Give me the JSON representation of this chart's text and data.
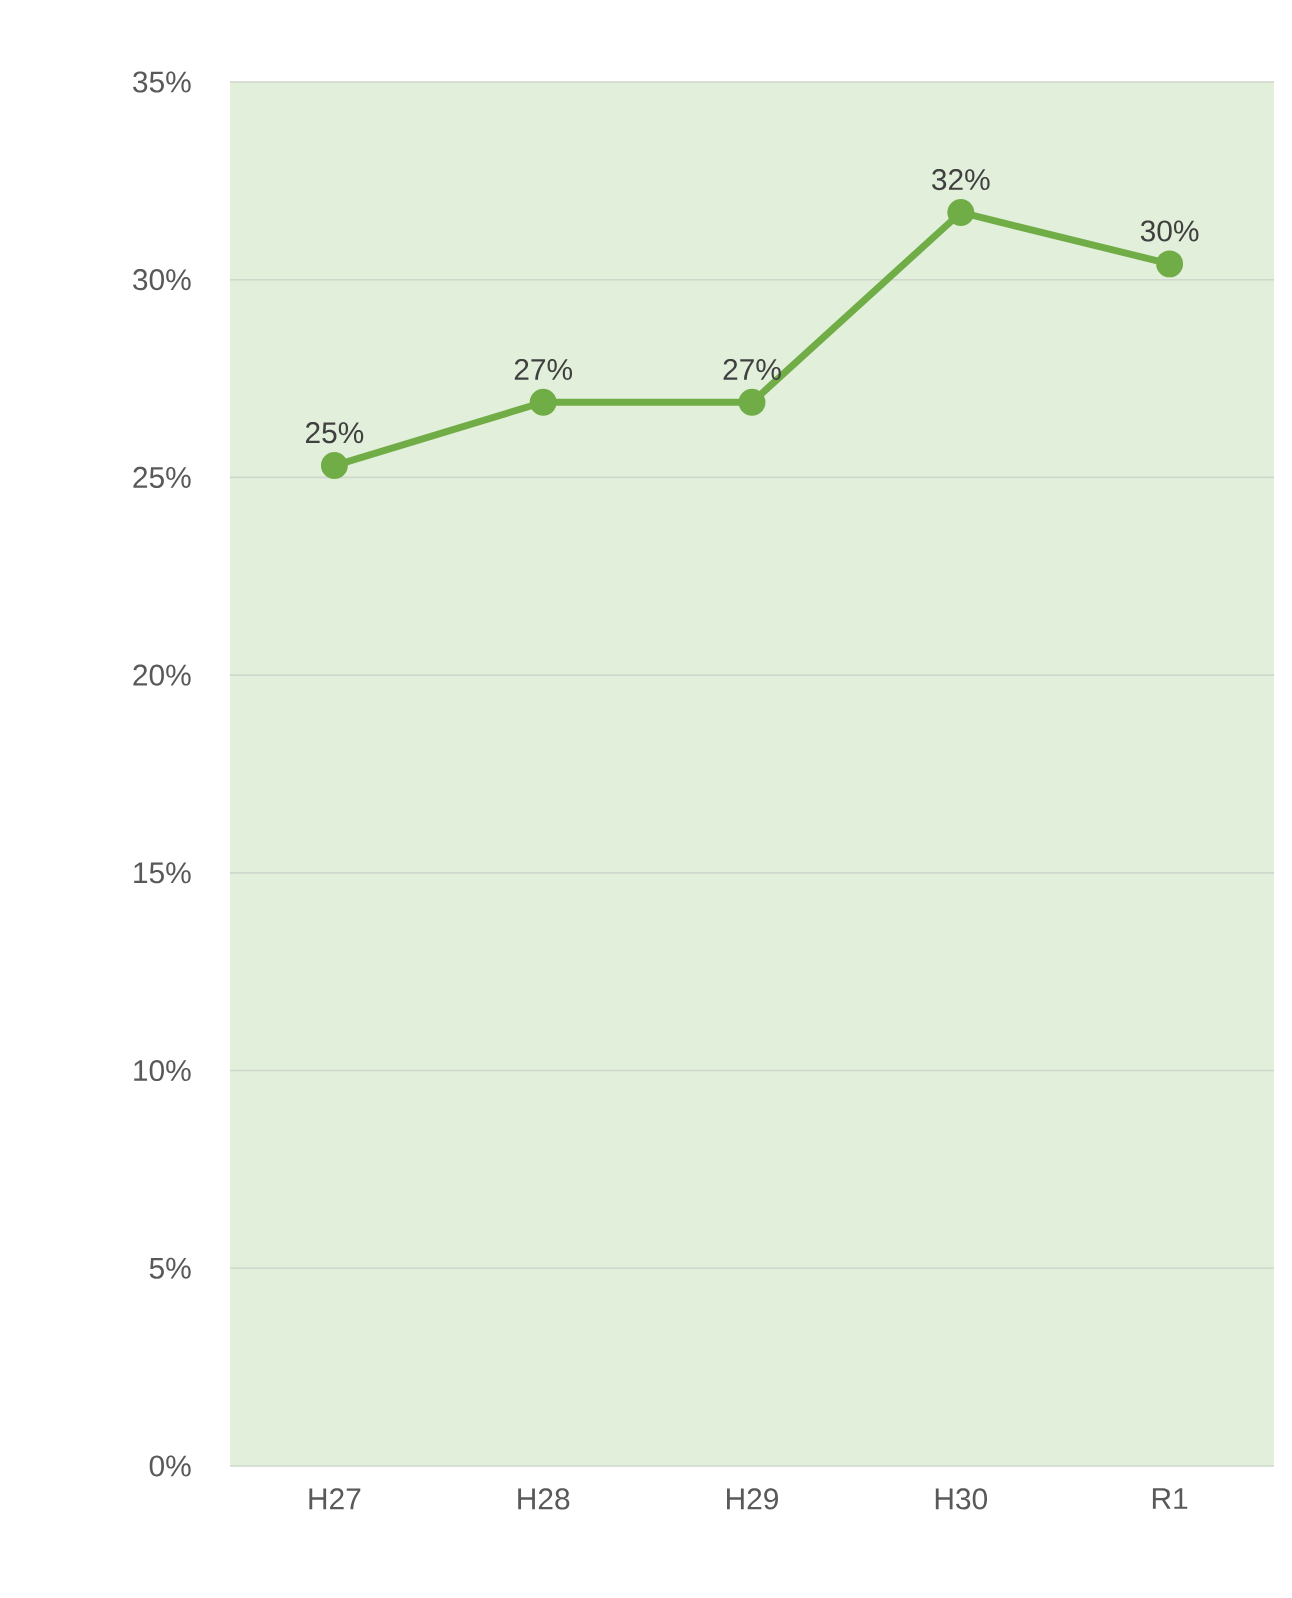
{
  "chart_data": {
    "type": "line",
    "categories": [
      "H27",
      "H28",
      "H29",
      "H30",
      "R1"
    ],
    "series": [
      {
        "color": "#70ad47",
        "values": [
          25.3,
          26.9,
          26.9,
          31.7,
          30.4
        ]
      }
    ],
    "value_labels": [
      "25%",
      "27%",
      "27%",
      "32%",
      "30%"
    ],
    "ylim": [
      0,
      35
    ],
    "yticks": [
      {
        "value": 0,
        "label": "0%"
      },
      {
        "value": 5,
        "label": "5%"
      },
      {
        "value": 10,
        "label": "10%"
      },
      {
        "value": 15,
        "label": "15%"
      },
      {
        "value": 20,
        "label": "20%"
      },
      {
        "value": 25,
        "label": "25%"
      },
      {
        "value": 30,
        "label": "30%"
      },
      {
        "value": 35,
        "label": "35%"
      }
    ],
    "grid": "y",
    "marker": "circle",
    "line_style": "solid"
  }
}
